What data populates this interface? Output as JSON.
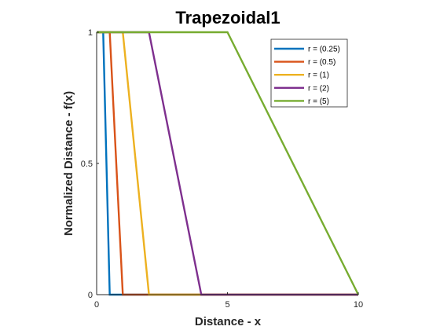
{
  "chart_data": {
    "type": "line",
    "title": "Trapezoidal1",
    "xlabel": "Distance - x",
    "ylabel": "Normalized Distance - f(x)",
    "xlim": [
      0,
      10
    ],
    "ylim": [
      0,
      1
    ],
    "x_ticks": [
      "0",
      "5",
      "10"
    ],
    "y_ticks": [
      "0",
      "0.5",
      "1"
    ],
    "grid": false,
    "legend_position": "top-right",
    "series": [
      {
        "name": "r = (0.25)",
        "color": "#0072BD",
        "x": [
          0,
          0.25,
          0.5,
          10
        ],
        "y": [
          1,
          1,
          0,
          0
        ]
      },
      {
        "name": "r = (0.5)",
        "color": "#D95319",
        "x": [
          0,
          0.5,
          1,
          10
        ],
        "y": [
          1,
          1,
          0,
          0
        ]
      },
      {
        "name": "r = (1)",
        "color": "#EDB120",
        "x": [
          0,
          1,
          2,
          10
        ],
        "y": [
          1,
          1,
          0,
          0
        ]
      },
      {
        "name": "r = (2)",
        "color": "#7E2F8E",
        "x": [
          0,
          2,
          4,
          10
        ],
        "y": [
          1,
          1,
          0,
          0
        ]
      },
      {
        "name": "r = (5)",
        "color": "#77AC30",
        "x": [
          0,
          5,
          10,
          10
        ],
        "y": [
          1,
          1,
          0,
          0
        ]
      }
    ]
  }
}
